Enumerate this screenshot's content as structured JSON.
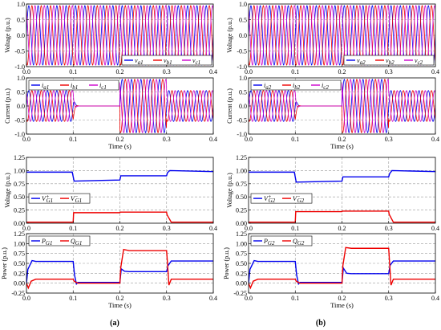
{
  "captions": [
    "(a)",
    "(b)"
  ],
  "chart_data": [
    {
      "id": "a-voltage",
      "type": "line",
      "ylabel": "Voltage (p.u.)",
      "xlim": [
        0,
        0.4
      ],
      "ylim": [
        -1,
        1
      ],
      "xticks": [
        "0.0",
        "0.1",
        "0.2",
        "0.3",
        "0.4"
      ],
      "yticks": [
        "-1.0",
        "-0.5",
        "0.0",
        "0.5",
        "1.0"
      ],
      "legend_position": "bottom-right",
      "waveform": {
        "kind": "three-phase-sine",
        "frequency_hz": 50,
        "amplitude": 0.95
      },
      "series": [
        {
          "name": "v",
          "sub": "a1",
          "color": "#0000ee"
        },
        {
          "name": "v",
          "sub": "b1",
          "color": "#ee0000"
        },
        {
          "name": "v",
          "sub": "c1",
          "color": "#cc00cc"
        }
      ]
    },
    {
      "id": "a-current",
      "type": "line",
      "ylabel": "Current (p.u.)",
      "xlabel": "Time (s)",
      "xlim": [
        0,
        0.4
      ],
      "ylim": [
        -1,
        1
      ],
      "xticks": [
        "0.0",
        "0.1",
        "0.2",
        "0.3",
        "0.4"
      ],
      "yticks": [
        "-1.0",
        "-0.5",
        "0.0",
        "0.5",
        "1.0"
      ],
      "legend_position": "top-left",
      "waveform": {
        "kind": "three-phase-sine",
        "frequency_hz": 50,
        "amplitude_segments": [
          [
            0,
            0.1,
            0.55
          ],
          [
            0.1,
            0.2,
            0
          ],
          [
            0.2,
            0.3,
            0.95
          ],
          [
            0.3,
            0.4,
            0.55
          ]
        ]
      },
      "series": [
        {
          "name": "i",
          "sub": "a1",
          "color": "#0000ee"
        },
        {
          "name": "i",
          "sub": "b1",
          "color": "#ee0000"
        },
        {
          "name": "i",
          "sub": "c1",
          "color": "#cc00cc"
        }
      ]
    },
    {
      "id": "a-vg",
      "type": "line",
      "ylabel": "Voltage (p.u.)",
      "xlim": [
        0,
        0.4
      ],
      "ylim": [
        0,
        1.25
      ],
      "xticks": [
        "0.0",
        "0.1",
        "0.2",
        "0.3",
        "0.4"
      ],
      "yticks": [
        "0.00",
        "0.25",
        "0.50",
        "0.75",
        "1.00",
        "1.25"
      ],
      "legend_position": "middle-left",
      "series": [
        {
          "name": "V",
          "sup": "+",
          "sub": "G1",
          "color": "#0000ee",
          "x": [
            0,
            0.098,
            0.102,
            0.2,
            0.202,
            0.3,
            0.302,
            0.307,
            0.4
          ],
          "y": [
            0.97,
            0.97,
            0.8,
            0.82,
            0.9,
            0.9,
            0.96,
            1.0,
            0.98
          ]
        },
        {
          "name": "V",
          "sup": "−",
          "sub": "G1",
          "color": "#ee0000",
          "x": [
            0,
            0.1,
            0.101,
            0.2,
            0.201,
            0.3,
            0.301,
            0.31,
            0.4
          ],
          "y": [
            0.02,
            0.02,
            0.2,
            0.2,
            0.21,
            0.21,
            0.16,
            0.02,
            0.02
          ]
        }
      ]
    },
    {
      "id": "a-power",
      "type": "line",
      "ylabel": "Power (p.u.)",
      "xlabel": "Time (s)",
      "xlim": [
        0,
        0.4
      ],
      "ylim": [
        -0.25,
        1.25
      ],
      "xticks": [
        "0.0",
        "0.1",
        "0.2",
        "0.3",
        "0.4"
      ],
      "yticks": [
        "-0.25",
        "0.00",
        "0.25",
        "0.50",
        "0.75",
        "1.00",
        "1.25"
      ],
      "legend_position": "top-left",
      "series": [
        {
          "name": "P",
          "sub": "G1",
          "color": "#0000ee",
          "x": [
            0,
            0.003,
            0.012,
            0.02,
            0.1,
            0.103,
            0.107,
            0.11,
            0.2,
            0.203,
            0.21,
            0.22,
            0.3,
            0.303,
            0.31,
            0.4
          ],
          "y": [
            0,
            0.35,
            0.57,
            0.55,
            0.55,
            0.2,
            -0.02,
            0.02,
            0.02,
            0.36,
            0.3,
            0.29,
            0.29,
            0.44,
            0.56,
            0.56
          ]
        },
        {
          "name": "Q",
          "sub": "G1",
          "color": "#ee0000",
          "x": [
            0,
            0.004,
            0.01,
            0.02,
            0.1,
            0.102,
            0.11,
            0.2,
            0.202,
            0.208,
            0.22,
            0.3,
            0.302,
            0.305,
            0.31,
            0.4
          ],
          "y": [
            0,
            -0.12,
            0.05,
            0.1,
            0.1,
            0.05,
            0.0,
            0.0,
            0.4,
            0.85,
            0.82,
            0.82,
            0.5,
            -0.05,
            0.1,
            0.1
          ]
        }
      ]
    },
    {
      "id": "b-voltage",
      "type": "line",
      "ylabel": "Voltage (p.u.)",
      "xlim": [
        0,
        0.4
      ],
      "ylim": [
        -1,
        1
      ],
      "xticks": [
        "0.0",
        "0.1",
        "0.2",
        "0.3",
        "0.4"
      ],
      "yticks": [
        "-1.0",
        "-0.5",
        "0.0",
        "0.5",
        "1.0"
      ],
      "legend_position": "bottom-right",
      "waveform": {
        "kind": "three-phase-sine",
        "frequency_hz": 50,
        "amplitude": 0.95
      },
      "series": [
        {
          "name": "v",
          "sub": "a2",
          "color": "#0000ee"
        },
        {
          "name": "v",
          "sub": "b2",
          "color": "#ee0000"
        },
        {
          "name": "v",
          "sub": "c2",
          "color": "#cc00cc"
        }
      ]
    },
    {
      "id": "b-current",
      "type": "line",
      "ylabel": "Current (p.u.)",
      "xlabel": "Time (s)",
      "xlim": [
        0,
        0.4
      ],
      "ylim": [
        -1,
        1
      ],
      "xticks": [
        "0.0",
        "0.1",
        "0.2",
        "0.3",
        "0.4"
      ],
      "yticks": [
        "-1.0",
        "-0.5",
        "0.0",
        "0.5",
        "1.0"
      ],
      "legend_position": "top-left",
      "waveform": {
        "kind": "three-phase-sine",
        "frequency_hz": 50,
        "amplitude_segments": [
          [
            0,
            0.1,
            0.55
          ],
          [
            0.1,
            0.2,
            0
          ],
          [
            0.2,
            0.3,
            0.95
          ],
          [
            0.3,
            0.4,
            0.55
          ]
        ]
      },
      "series": [
        {
          "name": "i",
          "sub": "a2",
          "color": "#0000ee"
        },
        {
          "name": "i",
          "sub": "b2",
          "color": "#ee0000"
        },
        {
          "name": "i",
          "sub": "c2",
          "color": "#cc00cc"
        }
      ]
    },
    {
      "id": "b-vg",
      "type": "line",
      "ylabel": "Voltage (p.u.)",
      "xlim": [
        0,
        0.4
      ],
      "ylim": [
        0,
        1.25
      ],
      "xticks": [
        "0.0",
        "0.1",
        "0.2",
        "0.3",
        "0.4"
      ],
      "yticks": [
        "0.00",
        "0.25",
        "0.50",
        "0.75",
        "1.00",
        "1.25"
      ],
      "legend_position": "middle-left",
      "series": [
        {
          "name": "V",
          "sup": "+",
          "sub": "G2",
          "color": "#0000ee",
          "x": [
            0,
            0.098,
            0.102,
            0.2,
            0.202,
            0.3,
            0.302,
            0.307,
            0.4
          ],
          "y": [
            0.97,
            0.97,
            0.78,
            0.8,
            0.88,
            0.88,
            0.94,
            1.0,
            0.98
          ]
        },
        {
          "name": "V",
          "sup": "−",
          "sub": "G2",
          "color": "#ee0000",
          "x": [
            0,
            0.1,
            0.101,
            0.2,
            0.201,
            0.3,
            0.301,
            0.31,
            0.4
          ],
          "y": [
            0.02,
            0.02,
            0.22,
            0.22,
            0.23,
            0.23,
            0.17,
            0.02,
            0.02
          ]
        }
      ]
    },
    {
      "id": "b-power",
      "type": "line",
      "ylabel": "Power (p.u.)",
      "xlabel": "Time (s)",
      "xlim": [
        0,
        0.4
      ],
      "ylim": [
        -0.25,
        1.25
      ],
      "xticks": [
        "0.0",
        "0.1",
        "0.2",
        "0.3",
        "0.4"
      ],
      "yticks": [
        "-0.25",
        "0.00",
        "0.25",
        "0.50",
        "0.75",
        "1.00",
        "1.25"
      ],
      "legend_position": "top-left",
      "series": [
        {
          "name": "P",
          "sub": "G2",
          "color": "#0000ee",
          "x": [
            0,
            0.003,
            0.012,
            0.02,
            0.1,
            0.103,
            0.107,
            0.11,
            0.2,
            0.203,
            0.21,
            0.22,
            0.3,
            0.303,
            0.31,
            0.4
          ],
          "y": [
            0,
            0.35,
            0.57,
            0.55,
            0.55,
            0.2,
            -0.02,
            0.02,
            0.02,
            0.38,
            0.25,
            0.24,
            0.24,
            0.45,
            0.56,
            0.56
          ]
        },
        {
          "name": "Q",
          "sub": "G2",
          "color": "#ee0000",
          "x": [
            0,
            0.004,
            0.01,
            0.02,
            0.1,
            0.102,
            0.11,
            0.2,
            0.202,
            0.208,
            0.22,
            0.3,
            0.302,
            0.305,
            0.31,
            0.4
          ],
          "y": [
            0,
            -0.12,
            0.05,
            0.1,
            0.1,
            0.05,
            0.0,
            0.0,
            0.45,
            0.9,
            0.88,
            0.88,
            0.5,
            -0.05,
            0.1,
            0.1
          ]
        }
      ]
    }
  ]
}
